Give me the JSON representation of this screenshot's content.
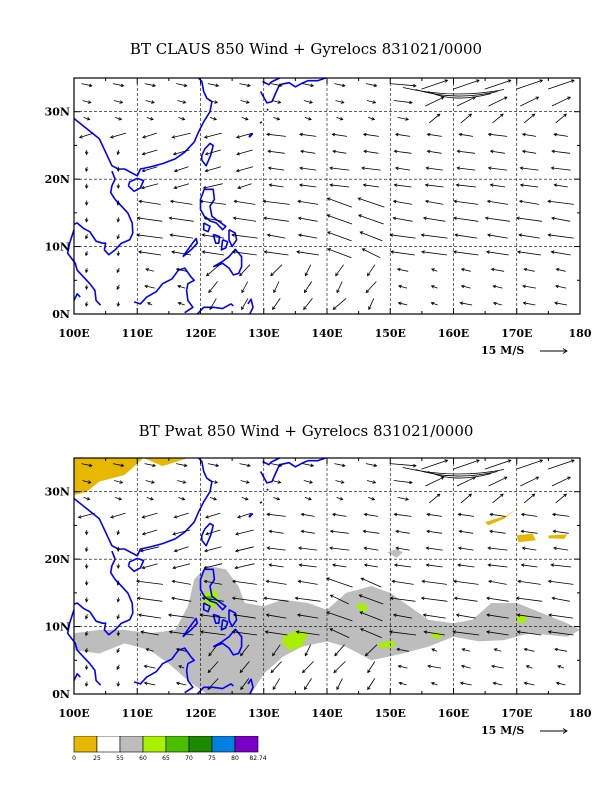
{
  "panels": [
    {
      "title": "BT CLAUS 850 Wind + Gyrelocs 831021/0000",
      "x_labels": [
        "100E",
        "110E",
        "120E",
        "130E",
        "140E",
        "150E",
        "160E",
        "170E",
        "180"
      ],
      "y_labels": [
        "0N",
        "10N",
        "20N",
        "30N"
      ],
      "scale_label": "15 M/S",
      "shading": false
    },
    {
      "title": "BT Pwat 850 Wind + Gyrelocs 831021/0000",
      "x_labels": [
        "100E",
        "110E",
        "120E",
        "130E",
        "140E",
        "150E",
        "160E",
        "170E",
        "180"
      ],
      "y_labels": [
        "0N",
        "10N",
        "20N",
        "30N"
      ],
      "scale_label": "15 M/S",
      "shading": true
    }
  ],
  "colorbar": {
    "tick_labels": [
      "0",
      "25",
      "55",
      "60",
      "65",
      "70",
      "75",
      "80",
      "82.74"
    ],
    "colors": [
      "#e6b800",
      "#ffffff",
      "#bdbdbd",
      "#a6f000",
      "#4cc000",
      "#1a8a00",
      "#0080e0",
      "#7a00c8"
    ]
  },
  "colors": {
    "coast": "#0000ff",
    "grid": "#000000",
    "arrow": "#000000",
    "moist_gray": "#bdbdbd",
    "moist_lime": "#a6f000",
    "moist_green": "#4cc000",
    "dry_yellow": "#e6b800"
  }
}
